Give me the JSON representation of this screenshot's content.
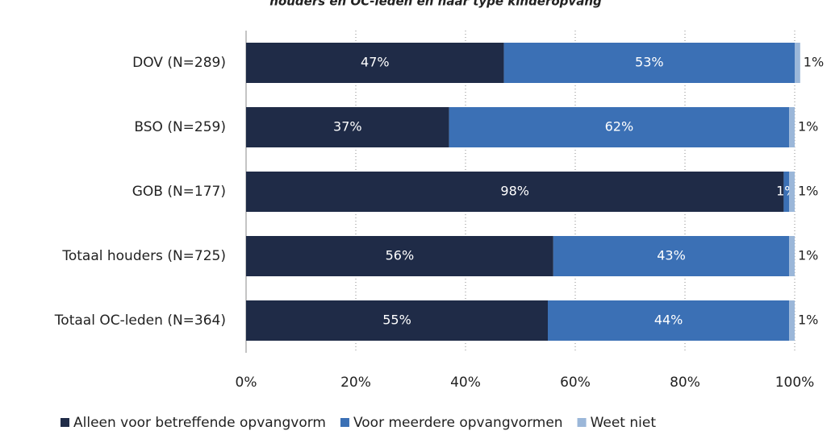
{
  "chart_data": {
    "type": "stacked_barh",
    "title": "houders en OC-leden en naar type kinderopvang",
    "categories": [
      "DOV (N=289)",
      "BSO (N=259)",
      "GOB (N=177)",
      "Totaal houders (N=725)",
      "Totaal OC-leden (N=364)"
    ],
    "series": [
      {
        "name": "Alleen voor betreffende opvangvorm",
        "color": "#1f2b47",
        "values": [
          47,
          37,
          98,
          56,
          55
        ],
        "value_labels": [
          "47%",
          "37%",
          "98%",
          "56%",
          "55%"
        ]
      },
      {
        "name": "Voor meerdere opvangvormen",
        "color": "#3b70b5",
        "values": [
          53,
          62,
          1,
          43,
          44
        ],
        "value_labels": [
          "53%",
          "62%",
          "1%",
          "43%",
          "44%"
        ]
      },
      {
        "name": "Weet niet",
        "color": "#9bb7d9",
        "values": [
          1,
          1,
          1,
          1,
          1
        ],
        "value_labels": [
          "1%",
          "1%",
          "1%",
          "1%",
          "1%"
        ]
      }
    ],
    "xlim": [
      0,
      100
    ],
    "xticks": [
      {
        "value": 0,
        "label": "0%"
      },
      {
        "value": 20,
        "label": "20%"
      },
      {
        "value": 40,
        "label": "40%"
      },
      {
        "value": 60,
        "label": "60%"
      },
      {
        "value": 80,
        "label": "80%"
      },
      {
        "value": 100,
        "label": "100%"
      }
    ],
    "grid": true,
    "legend": "bottom"
  }
}
